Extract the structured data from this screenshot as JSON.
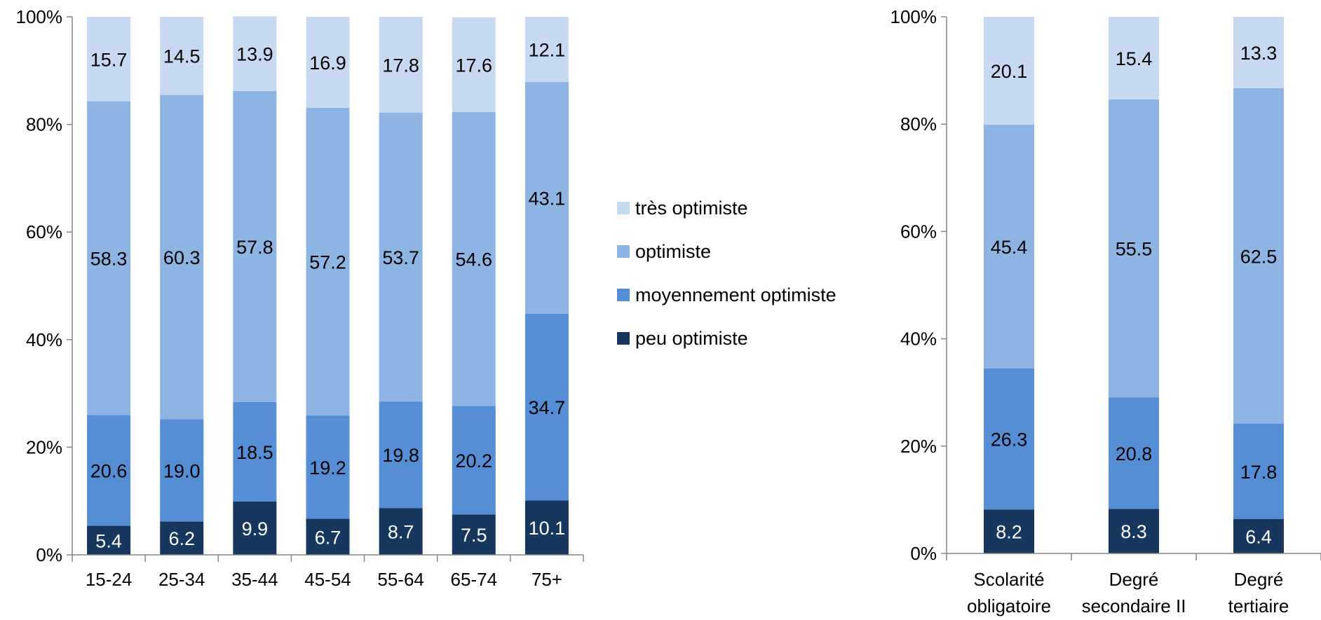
{
  "colors": {
    "peu": "#17375e",
    "moyennement": "#558ed5",
    "optimiste": "#8eb4e3",
    "tres": "#c6d9f1",
    "axis": "#868686"
  },
  "legend": [
    {
      "key": "tres",
      "label": "très optimiste"
    },
    {
      "key": "optimiste",
      "label": "optimiste"
    },
    {
      "key": "moyennement",
      "label": "moyennement optimiste"
    },
    {
      "key": "peu",
      "label": "peu optimiste"
    }
  ],
  "chart_data": [
    {
      "type": "bar",
      "stacked": true,
      "percent": true,
      "y_ticks": [
        "0%",
        "20%",
        "40%",
        "60%",
        "80%",
        "100%"
      ],
      "ylim": [
        0,
        100
      ],
      "categories": [
        "15-24",
        "25-34",
        "35-44",
        "45-54",
        "55-64",
        "65-74",
        "75+"
      ],
      "series": [
        {
          "name": "peu optimiste",
          "key": "peu",
          "values": [
            5.4,
            6.2,
            9.9,
            6.7,
            8.7,
            7.5,
            10.1
          ],
          "labels": [
            "5.4",
            "6.2",
            "9.9",
            "6.7",
            "8.7",
            "7.5",
            "10.1"
          ]
        },
        {
          "name": "moyennement optimiste",
          "key": "moyennement",
          "values": [
            20.6,
            19.0,
            18.5,
            19.2,
            19.8,
            20.2,
            34.7
          ],
          "labels": [
            "20.6",
            "19.0",
            "18.5",
            "19.2",
            "19.8",
            "20.2",
            "34.7"
          ]
        },
        {
          "name": "optimiste",
          "key": "optimiste",
          "values": [
            58.3,
            60.3,
            57.8,
            57.2,
            53.7,
            54.6,
            43.1
          ],
          "labels": [
            "58.3",
            "60.3",
            "57.8",
            "57.2",
            "53.7",
            "54.6",
            "43.1"
          ]
        },
        {
          "name": "très optimiste",
          "key": "tres",
          "values": [
            15.7,
            14.5,
            13.9,
            16.9,
            17.8,
            17.6,
            12.1
          ],
          "labels": [
            "15.7",
            "14.5",
            "13.9",
            "16.9",
            "17.8",
            "17.6",
            "12.1"
          ]
        }
      ]
    },
    {
      "type": "bar",
      "stacked": true,
      "percent": true,
      "y_ticks": [
        "0%",
        "20%",
        "40%",
        "60%",
        "80%",
        "100%"
      ],
      "ylim": [
        0,
        100
      ],
      "categories": [
        "Scolarité obligatoire",
        "Degré secondaire II",
        "Degré tertiaire"
      ],
      "category_lines": [
        [
          "Scolarité",
          "obligatoire"
        ],
        [
          "Degré",
          "secondaire II"
        ],
        [
          "Degré",
          "tertiaire"
        ]
      ],
      "series": [
        {
          "name": "peu optimiste",
          "key": "peu",
          "values": [
            8.2,
            8.3,
            6.4
          ],
          "labels": [
            "8.2",
            "8.3",
            "6.4"
          ]
        },
        {
          "name": "moyennement optimiste",
          "key": "moyennement",
          "values": [
            26.3,
            20.8,
            17.8
          ],
          "labels": [
            "26.3",
            "20.8",
            "17.8"
          ]
        },
        {
          "name": "optimiste",
          "key": "optimiste",
          "values": [
            45.4,
            55.5,
            62.5
          ],
          "labels": [
            "45.4",
            "55.5",
            "62.5"
          ]
        },
        {
          "name": "très optimiste",
          "key": "tres",
          "values": [
            20.1,
            15.4,
            13.3
          ],
          "labels": [
            "20.1",
            "15.4",
            "13.3"
          ]
        }
      ]
    }
  ]
}
